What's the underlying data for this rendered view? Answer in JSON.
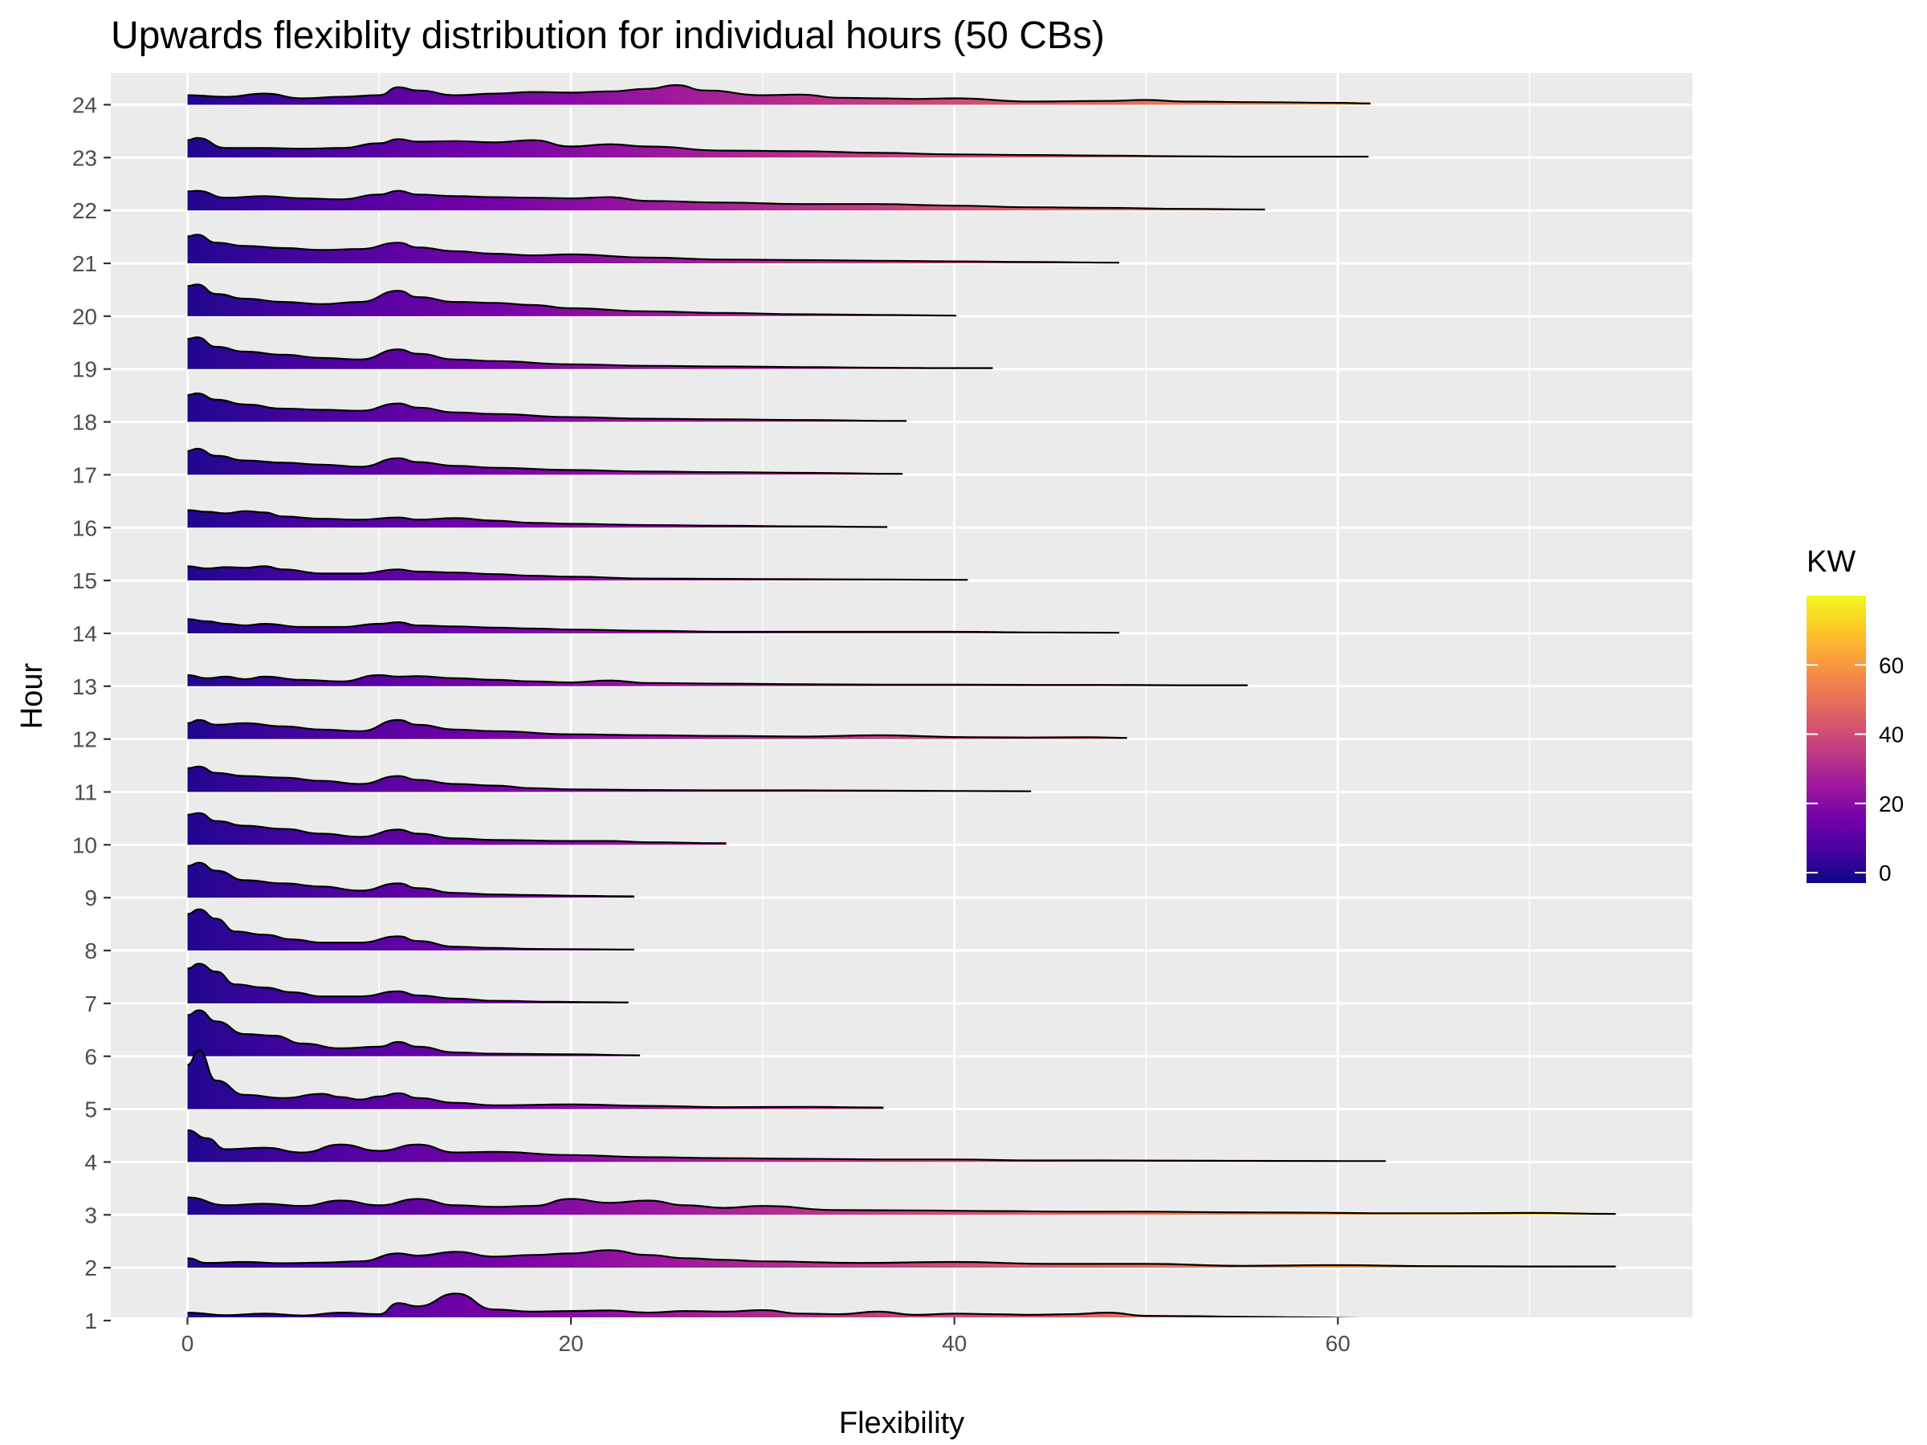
{
  "chart_data": {
    "type": "area",
    "subtype": "ridgeline-density",
    "title": "Upwards flexiblity distribution for individual hours (50 CBs)",
    "xlabel": "Flexibility",
    "ylabel": "Hour",
    "xlim": [
      -4,
      78.5
    ],
    "x_ticks": [
      0,
      20,
      40,
      60
    ],
    "x_tick_labels": [
      "0",
      "20",
      "40",
      "60"
    ],
    "hours": [
      "1",
      "2",
      "3",
      "4",
      "5",
      "6",
      "7",
      "8",
      "9",
      "10",
      "11",
      "12",
      "13",
      "14",
      "15",
      "16",
      "17",
      "18",
      "19",
      "20",
      "21",
      "22",
      "23",
      "24"
    ],
    "ridge_height_rows": 0.6,
    "legend": {
      "title": "KW",
      "position": "right",
      "ticks": [
        0,
        20,
        40,
        60
      ],
      "range": [
        -3,
        80
      ]
    },
    "colors": {
      "panel_background": "#ebebeb",
      "grid": "#ffffff",
      "outline": "#000000",
      "fill_scale": "plasma",
      "fill_stops": [
        "#0d0887",
        "#47039f",
        "#7301a8",
        "#9c179e",
        "#bd3786",
        "#d8576b",
        "#ed7953",
        "#fa9e3b",
        "#fdc926",
        "#f0f921"
      ]
    },
    "series": [
      {
        "name": "1",
        "x": [
          0,
          2,
          4,
          6,
          8,
          10,
          11,
          12,
          14,
          16,
          18,
          20,
          22,
          24,
          26,
          28,
          30,
          32,
          34,
          36,
          38,
          40,
          42,
          44,
          46,
          48,
          50,
          52,
          55,
          58,
          62,
          66,
          70,
          72.5
        ],
        "density": [
          0.25,
          0.17,
          0.22,
          0.16,
          0.25,
          0.2,
          0.55,
          0.45,
          0.85,
          0.35,
          0.28,
          0.3,
          0.32,
          0.25,
          0.3,
          0.28,
          0.33,
          0.22,
          0.2,
          0.28,
          0.18,
          0.22,
          0.2,
          0.18,
          0.2,
          0.25,
          0.15,
          0.14,
          0.12,
          0.1,
          0.07,
          0.05,
          0.04,
          0.02
        ]
      },
      {
        "name": "2",
        "x": [
          0,
          1,
          3,
          5,
          7,
          9,
          11,
          12,
          14,
          16,
          18,
          20,
          22,
          24,
          26,
          28,
          30,
          35,
          40,
          45,
          50,
          55,
          60,
          65,
          70,
          74.5
        ],
        "density": [
          0.3,
          0.15,
          0.18,
          0.14,
          0.16,
          0.2,
          0.45,
          0.38,
          0.5,
          0.35,
          0.4,
          0.45,
          0.55,
          0.4,
          0.3,
          0.25,
          0.2,
          0.15,
          0.18,
          0.12,
          0.12,
          0.06,
          0.08,
          0.05,
          0.04,
          0.04
        ]
      },
      {
        "name": "3",
        "x": [
          0,
          2,
          4,
          6,
          8,
          10,
          12,
          14,
          16,
          18,
          20,
          22,
          24,
          26,
          28,
          30,
          34,
          38,
          42,
          46,
          50,
          54,
          58,
          62,
          66,
          70,
          74.5
        ],
        "density": [
          0.55,
          0.3,
          0.35,
          0.28,
          0.45,
          0.3,
          0.5,
          0.3,
          0.25,
          0.28,
          0.5,
          0.38,
          0.45,
          0.3,
          0.22,
          0.28,
          0.15,
          0.14,
          0.12,
          0.1,
          0.1,
          0.08,
          0.07,
          0.05,
          0.05,
          0.06,
          0.03
        ]
      },
      {
        "name": "4",
        "x": [
          0,
          1,
          2,
          4,
          6,
          8,
          10,
          12,
          14,
          16,
          20,
          24,
          28,
          32,
          36,
          40,
          44,
          48,
          53.3,
          60.3,
          62.5
        ],
        "density": [
          1.0,
          0.75,
          0.4,
          0.45,
          0.3,
          0.55,
          0.35,
          0.55,
          0.3,
          0.32,
          0.22,
          0.15,
          0.12,
          0.1,
          0.08,
          0.08,
          0.05,
          0.05,
          0.04,
          0.03,
          0.03
        ]
      },
      {
        "name": "5",
        "x": [
          0,
          0.6,
          1.5,
          3,
          5,
          7,
          8,
          9,
          10,
          11,
          12,
          14,
          16,
          20,
          24,
          28,
          32,
          36.3
        ],
        "density": [
          1.4,
          1.85,
          0.9,
          0.45,
          0.35,
          0.48,
          0.38,
          0.3,
          0.4,
          0.5,
          0.35,
          0.2,
          0.12,
          0.15,
          0.1,
          0.06,
          0.07,
          0.05
        ]
      },
      {
        "name": "6",
        "x": [
          0,
          0.6,
          1.5,
          3,
          4.5,
          6,
          8,
          10,
          11,
          12,
          14,
          16,
          20,
          23.6
        ],
        "density": [
          1.3,
          1.45,
          1.1,
          0.7,
          0.65,
          0.4,
          0.25,
          0.3,
          0.45,
          0.3,
          0.12,
          0.08,
          0.06,
          0.03
        ]
      },
      {
        "name": "7",
        "x": [
          0,
          0.6,
          1.5,
          2.5,
          4,
          5.5,
          7,
          9,
          11,
          12,
          14,
          16,
          19.2,
          20.8,
          23
        ],
        "density": [
          1.1,
          1.25,
          1.0,
          0.6,
          0.5,
          0.35,
          0.22,
          0.22,
          0.38,
          0.25,
          0.15,
          0.08,
          0.05,
          0.04,
          0.03
        ]
      },
      {
        "name": "8",
        "x": [
          0,
          0.6,
          1.5,
          2.5,
          4,
          5.5,
          7,
          9,
          11,
          12,
          14,
          16,
          18.1,
          20.8,
          23.3
        ],
        "density": [
          1.15,
          1.3,
          1.0,
          0.6,
          0.5,
          0.35,
          0.25,
          0.25,
          0.45,
          0.3,
          0.12,
          0.08,
          0.05,
          0.04,
          0.03
        ]
      },
      {
        "name": "9",
        "x": [
          0,
          0.6,
          1.5,
          3,
          5,
          7,
          9,
          11,
          12,
          14,
          16,
          18,
          20,
          23.3
        ],
        "density": [
          1.0,
          1.1,
          0.85,
          0.55,
          0.45,
          0.35,
          0.22,
          0.45,
          0.3,
          0.15,
          0.1,
          0.08,
          0.06,
          0.04
        ]
      },
      {
        "name": "10",
        "x": [
          0,
          0.6,
          1.5,
          3,
          5,
          7,
          9,
          11,
          12,
          14,
          16,
          20,
          22,
          24,
          28.1
        ],
        "density": [
          0.95,
          1.0,
          0.75,
          0.6,
          0.5,
          0.35,
          0.25,
          0.48,
          0.35,
          0.2,
          0.15,
          0.12,
          0.12,
          0.08,
          0.05
        ]
      },
      {
        "name": "11",
        "x": [
          0,
          0.6,
          1.5,
          3,
          5,
          7,
          9,
          11,
          12,
          14,
          16,
          18,
          20,
          24,
          28,
          32,
          36,
          40,
          44
        ],
        "density": [
          0.75,
          0.8,
          0.6,
          0.5,
          0.45,
          0.35,
          0.25,
          0.5,
          0.38,
          0.25,
          0.2,
          0.12,
          0.08,
          0.06,
          0.05,
          0.05,
          0.04,
          0.03,
          0.02
        ]
      },
      {
        "name": "12",
        "x": [
          0,
          0.6,
          1.5,
          3,
          5,
          7,
          9,
          11,
          12,
          14,
          16,
          20,
          24,
          28,
          32,
          36,
          40.8,
          43.8,
          47,
          49
        ],
        "density": [
          0.5,
          0.6,
          0.45,
          0.5,
          0.4,
          0.3,
          0.25,
          0.6,
          0.45,
          0.3,
          0.25,
          0.15,
          0.12,
          0.1,
          0.08,
          0.12,
          0.06,
          0.05,
          0.06,
          0.04
        ]
      },
      {
        "name": "13",
        "x": [
          0,
          1,
          2,
          3,
          4,
          6,
          8,
          10,
          11,
          12,
          14,
          16,
          18,
          20,
          22,
          24,
          28,
          32,
          36,
          40,
          44,
          48,
          51.5,
          53,
          55.3
        ],
        "density": [
          0.35,
          0.25,
          0.3,
          0.22,
          0.3,
          0.2,
          0.15,
          0.35,
          0.3,
          0.32,
          0.25,
          0.2,
          0.15,
          0.12,
          0.18,
          0.1,
          0.08,
          0.06,
          0.05,
          0.05,
          0.04,
          0.04,
          0.03,
          0.03,
          0.03
        ]
      },
      {
        "name": "14",
        "x": [
          0,
          1,
          2,
          3,
          4,
          6,
          8,
          10,
          11,
          12,
          14,
          16,
          18,
          20,
          24,
          28,
          32,
          36,
          40,
          44,
          48.6
        ],
        "density": [
          0.45,
          0.38,
          0.3,
          0.25,
          0.3,
          0.2,
          0.2,
          0.3,
          0.35,
          0.25,
          0.22,
          0.18,
          0.15,
          0.12,
          0.08,
          0.05,
          0.05,
          0.05,
          0.05,
          0.03,
          0.02
        ]
      },
      {
        "name": "15",
        "x": [
          0,
          1,
          2,
          3,
          4,
          5,
          7,
          9,
          11,
          12,
          14,
          16,
          18,
          20,
          24,
          28,
          32,
          36,
          40.7
        ],
        "density": [
          0.45,
          0.38,
          0.42,
          0.4,
          0.45,
          0.35,
          0.22,
          0.22,
          0.35,
          0.28,
          0.25,
          0.2,
          0.15,
          0.12,
          0.06,
          0.05,
          0.04,
          0.03,
          0.02
        ]
      },
      {
        "name": "16",
        "x": [
          0,
          1,
          2,
          3,
          4,
          5,
          7,
          9,
          11,
          12,
          14,
          16,
          18,
          20,
          24,
          28,
          32,
          36.5
        ],
        "density": [
          0.55,
          0.5,
          0.45,
          0.52,
          0.48,
          0.35,
          0.28,
          0.25,
          0.32,
          0.25,
          0.3,
          0.22,
          0.15,
          0.12,
          0.08,
          0.06,
          0.04,
          0.02
        ]
      },
      {
        "name": "17",
        "x": [
          0,
          0.5,
          1.5,
          3,
          5,
          7,
          9,
          11,
          12,
          14,
          16,
          20,
          24,
          28,
          32,
          37.3
        ],
        "density": [
          0.75,
          0.82,
          0.6,
          0.45,
          0.38,
          0.32,
          0.25,
          0.52,
          0.4,
          0.28,
          0.22,
          0.15,
          0.1,
          0.08,
          0.06,
          0.03
        ]
      },
      {
        "name": "18",
        "x": [
          0,
          0.5,
          1.5,
          3,
          5,
          7,
          9,
          11,
          12,
          14,
          16,
          20,
          24,
          28,
          32,
          37.5
        ],
        "density": [
          0.85,
          0.9,
          0.7,
          0.55,
          0.42,
          0.38,
          0.35,
          0.58,
          0.45,
          0.3,
          0.25,
          0.15,
          0.1,
          0.08,
          0.06,
          0.03
        ]
      },
      {
        "name": "19",
        "x": [
          0,
          0.5,
          1.5,
          3,
          5,
          7,
          9,
          11,
          12,
          14,
          16,
          20,
          24,
          28,
          32,
          36.5,
          39,
          42
        ],
        "density": [
          0.95,
          1.0,
          0.7,
          0.55,
          0.45,
          0.35,
          0.3,
          0.62,
          0.48,
          0.3,
          0.25,
          0.15,
          0.1,
          0.08,
          0.06,
          0.04,
          0.03,
          0.03
        ]
      },
      {
        "name": "20",
        "x": [
          0,
          0.5,
          1.5,
          3,
          5,
          7,
          9,
          11,
          12,
          14,
          16,
          18,
          20,
          24,
          28,
          32,
          36,
          40.1
        ],
        "density": [
          0.95,
          1.0,
          0.7,
          0.55,
          0.45,
          0.38,
          0.45,
          0.8,
          0.6,
          0.45,
          0.42,
          0.35,
          0.25,
          0.15,
          0.1,
          0.06,
          0.04,
          0.02
        ]
      },
      {
        "name": "21",
        "x": [
          0,
          0.5,
          1.5,
          3,
          5,
          7,
          9,
          11,
          12,
          14,
          16,
          18,
          20,
          24,
          28,
          32,
          36,
          40,
          44,
          48.6
        ],
        "density": [
          0.85,
          0.9,
          0.65,
          0.55,
          0.48,
          0.42,
          0.45,
          0.65,
          0.5,
          0.38,
          0.3,
          0.25,
          0.28,
          0.18,
          0.12,
          0.1,
          0.08,
          0.06,
          0.04,
          0.02
        ]
      },
      {
        "name": "22",
        "x": [
          0,
          0.5,
          2,
          4,
          6,
          8,
          10,
          11,
          12,
          14,
          16,
          18,
          20,
          22,
          24,
          28,
          32,
          36,
          40,
          44,
          48,
          52,
          56.2
        ],
        "density": [
          0.6,
          0.62,
          0.4,
          0.45,
          0.38,
          0.35,
          0.5,
          0.62,
          0.5,
          0.45,
          0.42,
          0.4,
          0.38,
          0.42,
          0.3,
          0.25,
          0.2,
          0.2,
          0.15,
          0.1,
          0.08,
          0.05,
          0.03
        ]
      },
      {
        "name": "23",
        "x": [
          0,
          0.5,
          2,
          4,
          6,
          8,
          10,
          11,
          12,
          14,
          16,
          18,
          20,
          22,
          24,
          28,
          32,
          36,
          40,
          44,
          48,
          52,
          54.8,
          58.7,
          61.6
        ],
        "density": [
          0.55,
          0.62,
          0.3,
          0.3,
          0.28,
          0.3,
          0.45,
          0.58,
          0.5,
          0.52,
          0.48,
          0.55,
          0.35,
          0.42,
          0.35,
          0.22,
          0.2,
          0.15,
          0.1,
          0.08,
          0.06,
          0.04,
          0.03,
          0.03,
          0.03
        ]
      },
      {
        "name": "24",
        "x": [
          0,
          2,
          4,
          6,
          8,
          10,
          11,
          12,
          14,
          16,
          18,
          20,
          22,
          24,
          25.5,
          27,
          30,
          32,
          34,
          36,
          38,
          40,
          44,
          48,
          50,
          52,
          56,
          60,
          61.7
        ],
        "density": [
          0.3,
          0.25,
          0.35,
          0.2,
          0.25,
          0.3,
          0.55,
          0.45,
          0.3,
          0.35,
          0.4,
          0.38,
          0.42,
          0.5,
          0.62,
          0.45,
          0.3,
          0.32,
          0.22,
          0.2,
          0.18,
          0.2,
          0.1,
          0.12,
          0.15,
          0.1,
          0.08,
          0.06,
          0.04
        ]
      }
    ]
  }
}
